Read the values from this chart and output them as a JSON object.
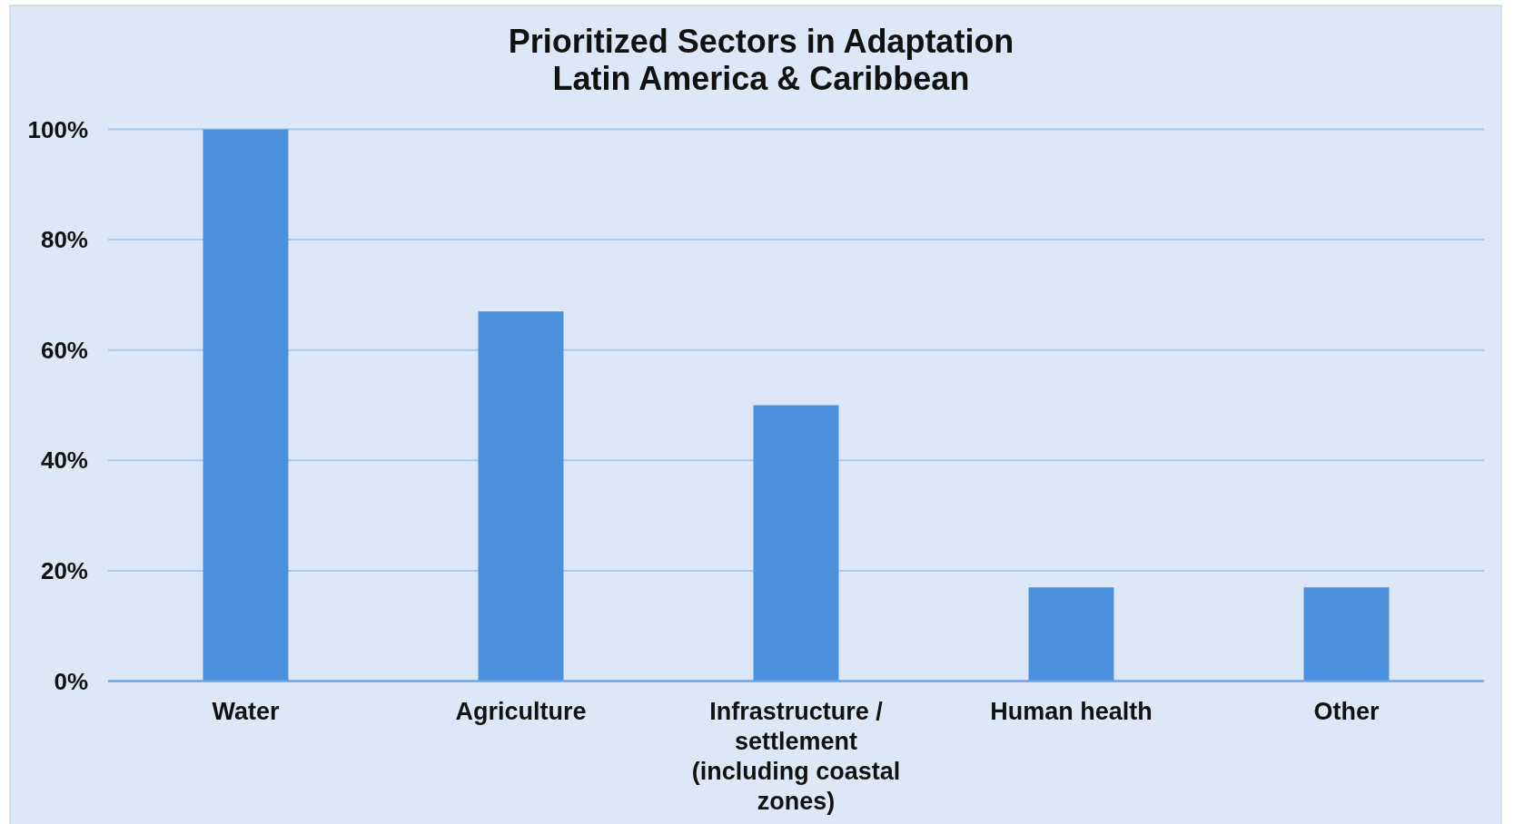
{
  "chart_data": {
    "type": "bar",
    "title": "Prioritized Sectors in Adaptation\nLatin America & Caribbean",
    "categories": [
      "Water",
      "Agriculture",
      "Infrastructure / settlement (including coastal zones)",
      "Human health",
      "Other"
    ],
    "values": [
      100,
      67,
      50,
      17,
      17
    ],
    "color": "#4a90dc",
    "ylim": [
      0,
      100
    ],
    "yticks": [
      {
        "value": 0,
        "label": "0%"
      },
      {
        "value": 20,
        "label": "20%"
      },
      {
        "value": 40,
        "label": "40%"
      },
      {
        "value": 60,
        "label": "60%"
      },
      {
        "value": 80,
        "label": "80%"
      },
      {
        "value": 100,
        "label": "100%"
      }
    ],
    "grid": "y"
  }
}
